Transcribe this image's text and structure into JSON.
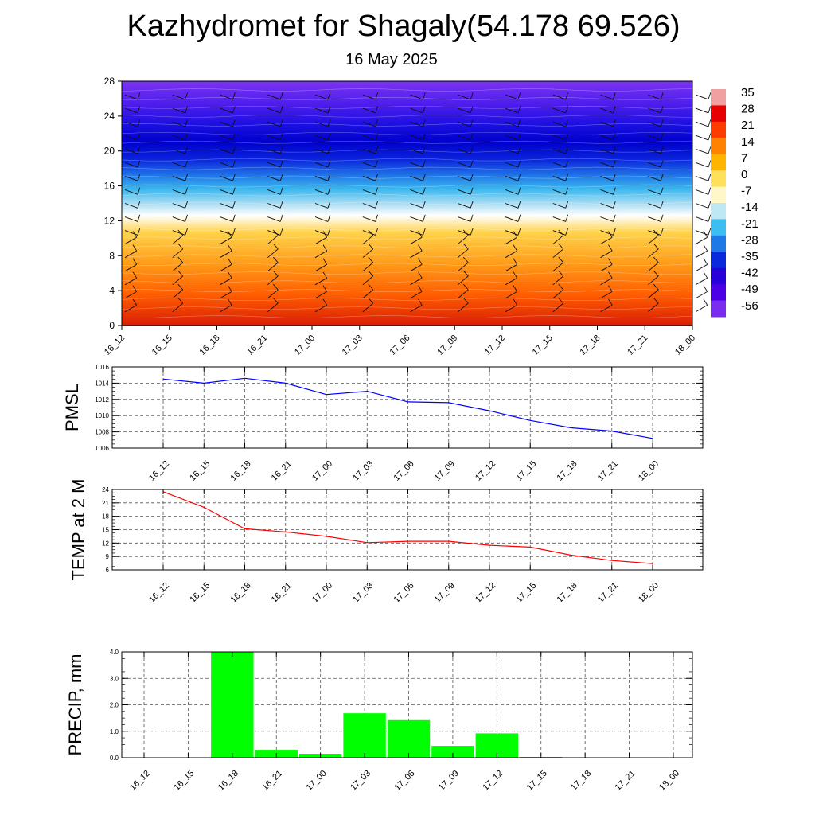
{
  "header": {
    "title": "Kazhydromet for Shagaly(54.178 69.526)",
    "subtitle": "16 May 2025"
  },
  "chart_data": [
    {
      "type": "heatmap",
      "title": "",
      "x_categories": [
        "16_12",
        "16_15",
        "16_18",
        "16_21",
        "17_00",
        "17_03",
        "17_06",
        "17_09",
        "17_12",
        "17_15",
        "17_18",
        "17_21",
        "18_00"
      ],
      "y_ticks": [
        0,
        4,
        8,
        12,
        16,
        20,
        24,
        28
      ],
      "ylim": [
        0,
        28
      ],
      "colorbar_labels": [
        "35",
        "28",
        "21",
        "14",
        "7",
        "0",
        "-7",
        "-14",
        "-21",
        "-28",
        "-35",
        "-42",
        "-49",
        "-56"
      ],
      "colorbar_colors": [
        "#f0a0a0",
        "#e60000",
        "#ff3c00",
        "#ff8200",
        "#ffb400",
        "#ffe05a",
        "#fff7c8",
        "#bfe8f5",
        "#3cbef0",
        "#1e78e6",
        "#0a28dc",
        "#2800d8",
        "#4b00e6",
        "#7a2cf0"
      ],
      "overlay": "wind barbs",
      "grid": false
    },
    {
      "type": "line",
      "ylabel": "PMSL",
      "x": [
        "16_12",
        "16_15",
        "16_18",
        "16_21",
        "17_00",
        "17_03",
        "17_06",
        "17_09",
        "17_12",
        "17_15",
        "17_18",
        "17_21",
        "18_00"
      ],
      "y_ticks": [
        1006,
        1008,
        1010,
        1012,
        1014,
        1016
      ],
      "ylim": [
        1006,
        1016
      ],
      "color": "#0000ff",
      "grid": true,
      "series": [
        {
          "values": [
            1014.5,
            1014.0,
            1014.6,
            1014.0,
            1012.6,
            1013.0,
            1011.7,
            1011.6,
            1010.6,
            1009.4,
            1008.5,
            1008.1,
            1007.2
          ]
        }
      ]
    },
    {
      "type": "line",
      "ylabel": "TEMP at 2 M",
      "x": [
        "16_12",
        "16_15",
        "16_18",
        "16_21",
        "17_00",
        "17_03",
        "17_06",
        "17_09",
        "17_12",
        "17_15",
        "17_18",
        "17_21",
        "18_00"
      ],
      "y_ticks": [
        6,
        9,
        12,
        15,
        18,
        21,
        24
      ],
      "ylim": [
        6,
        24
      ],
      "color": "#ff0000",
      "grid": true,
      "series": [
        {
          "values": [
            23.5,
            20.0,
            15.2,
            14.5,
            13.5,
            12.1,
            12.4,
            12.4,
            11.5,
            11.1,
            9.3,
            8.1,
            7.4
          ]
        }
      ]
    },
    {
      "type": "bar",
      "ylabel": "PRECIP, mm",
      "categories": [
        "16_12",
        "16_15",
        "16_18",
        "16_21",
        "17_00",
        "17_03",
        "17_06",
        "17_09",
        "17_12",
        "17_15",
        "17_18",
        "17_21",
        "18_00"
      ],
      "values": [
        0,
        0,
        4.0,
        0.3,
        0.15,
        1.68,
        1.42,
        0.45,
        0.92,
        0.03,
        0,
        0,
        0
      ],
      "y_ticks": [
        "0.0",
        "1.0",
        "2.0",
        "3.0",
        "4.0"
      ],
      "ylim": [
        0,
        4
      ],
      "color": "#00ff00",
      "grid": true
    }
  ]
}
